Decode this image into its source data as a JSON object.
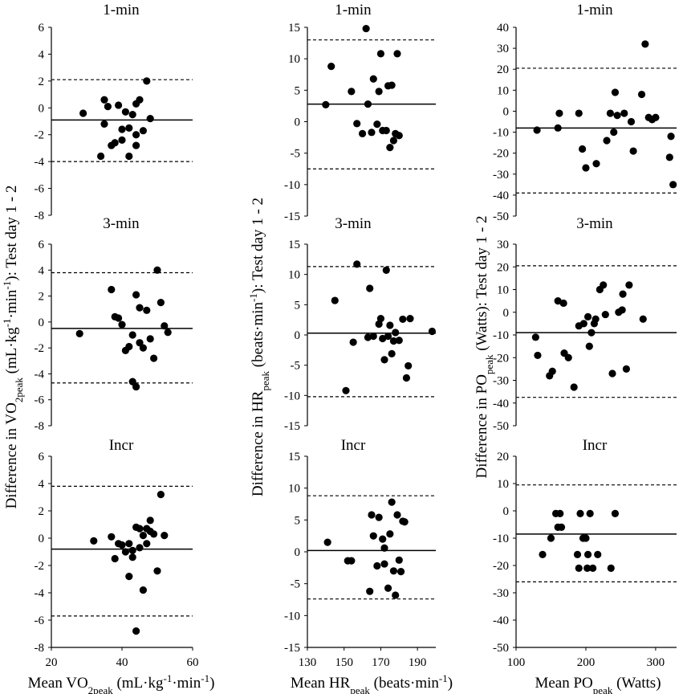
{
  "figure": {
    "xlabels": [
      {
        "pre": "Mean VO",
        "sub": "2peak",
        "post": " (mL·kg",
        "sup1": "-1",
        "mid": "·min",
        "sup2": "-1",
        "end": ")"
      },
      {
        "pre": "Mean HR",
        "sub": "peak",
        "post": " (beats·min",
        "sup1": "-1",
        "mid": "",
        "sup2": "",
        "end": ")"
      },
      {
        "pre": "Mean PO",
        "sub": "peak",
        "post": " (Watts)",
        "sup1": "",
        "mid": "",
        "sup2": "",
        "end": ""
      }
    ],
    "ylabels": [
      {
        "pre": "Difference in VO",
        "sub": "2peak",
        "post": " (mL·kg",
        "sup1": "-1",
        "mid": "·min",
        "sup2": "-1",
        "end": "): Test day 1 - 2"
      },
      {
        "pre": "Difference in HR",
        "sub": "peak",
        "post": " (beats·min",
        "sup1": "-1",
        "mid": "",
        "sup2": "",
        "end": "): Test day 1 - 2"
      },
      {
        "pre": "Difference in PO",
        "sub": "peak",
        "post": " (Watts): Test day 1 - 2",
        "sup1": "",
        "mid": "",
        "sup2": "",
        "end": ""
      }
    ]
  },
  "chart_data": [
    {
      "type": "scatter",
      "title": "1-min",
      "xlim": [
        20,
        60
      ],
      "xticks": [],
      "ylim": [
        -8,
        6
      ],
      "yticks": [
        6,
        4,
        2,
        0,
        -2,
        -4,
        -6,
        -8
      ],
      "mean": -0.9,
      "upper": 2.1,
      "lower": -4.0,
      "x": [
        29,
        34,
        35,
        35,
        36,
        37,
        38,
        39,
        40,
        40,
        41,
        42,
        42,
        43,
        44,
        44,
        44,
        45,
        46,
        47,
        48
      ],
      "y": [
        -0.4,
        -3.6,
        0.6,
        -1.2,
        0.1,
        -2.8,
        -2.6,
        0.2,
        -1.6,
        -2.4,
        -0.3,
        -3.6,
        -1.5,
        -0.5,
        -2.0,
        -2.8,
        0.3,
        0.6,
        -1.7,
        2.0,
        -0.8
      ]
    },
    {
      "type": "scatter",
      "title": "1-min",
      "xlim": [
        130,
        200
      ],
      "xticks": [],
      "ylim": [
        -15,
        15
      ],
      "yticks": [
        15,
        10,
        5,
        0,
        -5,
        -10,
        -15
      ],
      "mean": 2.8,
      "upper": 13.0,
      "lower": -7.5,
      "x": [
        140,
        143,
        154,
        157,
        160,
        162,
        163,
        165,
        166,
        168,
        169,
        170,
        171,
        173,
        174,
        175,
        176,
        177,
        178,
        179,
        180
      ],
      "y": [
        2.7,
        8.8,
        4.8,
        -0.3,
        -1.9,
        14.8,
        2.8,
        -1.7,
        6.8,
        -0.4,
        4.8,
        10.8,
        -1.4,
        -1.4,
        5.7,
        -4.1,
        5.8,
        -3.0,
        -1.9,
        10.8,
        -2.2
      ]
    },
    {
      "type": "scatter",
      "title": "1-min",
      "xlim": [
        100,
        330
      ],
      "xticks": [],
      "ylim": [
        -50,
        40
      ],
      "yticks": [
        40,
        30,
        20,
        10,
        0,
        -10,
        -20,
        -30,
        -40,
        -50
      ],
      "mean": -8.0,
      "upper": 20.5,
      "lower": -39.0,
      "x": [
        130,
        160,
        162,
        190,
        195,
        200,
        215,
        230,
        235,
        240,
        242,
        245,
        255,
        265,
        268,
        280,
        285,
        290,
        295,
        300,
        320,
        322,
        325
      ],
      "y": [
        -9,
        -8,
        -1,
        -1,
        -18,
        -27,
        -25,
        -14,
        -1,
        -10,
        9,
        -2,
        -1,
        -5,
        -19,
        8,
        32,
        -3,
        -4,
        -3,
        -22,
        -12,
        -35
      ]
    },
    {
      "type": "scatter",
      "title": "3-min",
      "xlim": [
        20,
        60
      ],
      "xticks": [],
      "ylim": [
        -8,
        6
      ],
      "yticks": [
        6,
        4,
        2,
        0,
        -2,
        -4,
        -6,
        -8
      ],
      "mean": -0.5,
      "upper": 3.8,
      "lower": -4.7,
      "x": [
        28,
        37,
        38,
        39,
        40,
        41,
        42,
        43,
        43,
        44,
        44,
        45,
        45,
        46,
        47,
        48,
        49,
        50,
        51,
        52,
        53
      ],
      "y": [
        -0.9,
        2.5,
        0.4,
        0.3,
        -0.2,
        -2.2,
        -1.9,
        -4.6,
        -1.0,
        2.1,
        -5.0,
        -1.6,
        1.1,
        -2.0,
        0.9,
        -1.3,
        -2.8,
        4.0,
        1.5,
        -0.3,
        -0.8
      ]
    },
    {
      "type": "scatter",
      "title": "3-min",
      "xlim": [
        130,
        200
      ],
      "xticks": [],
      "ylim": [
        -15,
        15
      ],
      "yticks": [
        15,
        10,
        5,
        0,
        -5,
        -10,
        -15
      ],
      "mean": 0.3,
      "upper": 11.3,
      "lower": -10.2,
      "x": [
        145,
        151,
        155,
        157,
        163,
        164,
        166,
        169,
        170,
        171,
        172,
        173,
        174,
        175,
        176,
        177,
        178,
        180,
        182,
        184,
        185,
        186,
        198
      ],
      "y": [
        5.7,
        -9.2,
        -1.2,
        11.7,
        -0.4,
        7.7,
        -0.2,
        1.8,
        2.7,
        -0.6,
        -4.1,
        10.7,
        -0.2,
        1.6,
        -3.1,
        -1.0,
        0.4,
        -0.9,
        2.6,
        -7.1,
        -5.1,
        2.7,
        0.6
      ]
    },
    {
      "type": "scatter",
      "title": "3-min",
      "xlim": [
        100,
        330
      ],
      "xticks": [],
      "ylim": [
        -50,
        30
      ],
      "yticks": [
        30,
        20,
        10,
        0,
        -10,
        -20,
        -30,
        -40,
        -50
      ],
      "mean": -9.0,
      "upper": 20.5,
      "lower": -37.5,
      "x": [
        128,
        131,
        148,
        152,
        160,
        168,
        169,
        175,
        183,
        190,
        197,
        203,
        205,
        208,
        212,
        214,
        220,
        225,
        228,
        238,
        247,
        252,
        253,
        258,
        262,
        282
      ],
      "y": [
        -11,
        -19,
        -28,
        -26,
        5,
        4,
        -18,
        -20,
        -33,
        -6,
        -5,
        -2,
        -15,
        -9,
        -5,
        -3,
        10,
        12,
        -1,
        -27,
        0,
        1,
        8,
        -25,
        12,
        -3
      ]
    },
    {
      "type": "scatter",
      "title": "Incr",
      "xlim": [
        20,
        60
      ],
      "xticks": [
        20,
        40,
        60
      ],
      "ylim": [
        -8,
        6
      ],
      "yticks": [
        6,
        4,
        2,
        0,
        -2,
        -4,
        -6,
        -8
      ],
      "mean": -0.8,
      "upper": 3.8,
      "lower": -5.7,
      "x": [
        32,
        37,
        38,
        39,
        40,
        41,
        42,
        42,
        43,
        43,
        44,
        44,
        45,
        45,
        46,
        46,
        47,
        47,
        48,
        48,
        49,
        50,
        51,
        52
      ],
      "y": [
        -0.2,
        0.1,
        -1.5,
        -0.4,
        -0.5,
        -1.0,
        -0.4,
        -2.8,
        -0.9,
        -1.4,
        -6.8,
        0.8,
        0.7,
        -0.7,
        -3.8,
        0.2,
        -0.4,
        0.7,
        0.5,
        1.3,
        0.3,
        -2.4,
        3.2,
        0.2
      ]
    },
    {
      "type": "scatter",
      "title": "Incr",
      "xlim": [
        130,
        200
      ],
      "xticks": [
        130,
        150,
        170,
        190
      ],
      "ylim": [
        -15,
        15
      ],
      "yticks": [
        15,
        10,
        5,
        0,
        -5,
        -10,
        -15
      ],
      "mean": 0.2,
      "upper": 8.8,
      "lower": -7.4,
      "x": [
        141,
        152,
        154,
        164,
        165,
        166,
        168,
        169,
        171,
        172,
        172,
        174,
        175,
        176,
        177,
        178,
        179,
        180,
        181,
        182,
        183
      ],
      "y": [
        1.5,
        -1.4,
        -1.4,
        -6.2,
        5.8,
        2.5,
        -2.2,
        5.4,
        2.0,
        0.6,
        -1.9,
        -5.7,
        2.8,
        7.8,
        -3.0,
        -6.8,
        5.8,
        -1.3,
        -3.1,
        4.8,
        4.7
      ]
    },
    {
      "type": "scatter",
      "title": "Incr",
      "xlim": [
        100,
        330
      ],
      "xticks": [
        100,
        200,
        300
      ],
      "ylim": [
        -50,
        20
      ],
      "yticks": [
        20,
        10,
        0,
        -10,
        -20,
        -30,
        -40,
        -50
      ],
      "mean": -8.5,
      "upper": 9.5,
      "lower": -26.0,
      "x": [
        138,
        150,
        157,
        160,
        163,
        165,
        188,
        190,
        192,
        196,
        200,
        202,
        203,
        206,
        210,
        217,
        236,
        242
      ],
      "y": [
        -16,
        -10,
        -1,
        -6,
        -1,
        -6,
        -16,
        -21,
        -1,
        -10,
        -10,
        -21,
        -16,
        -1,
        -21,
        -16,
        -21,
        -1
      ]
    }
  ]
}
